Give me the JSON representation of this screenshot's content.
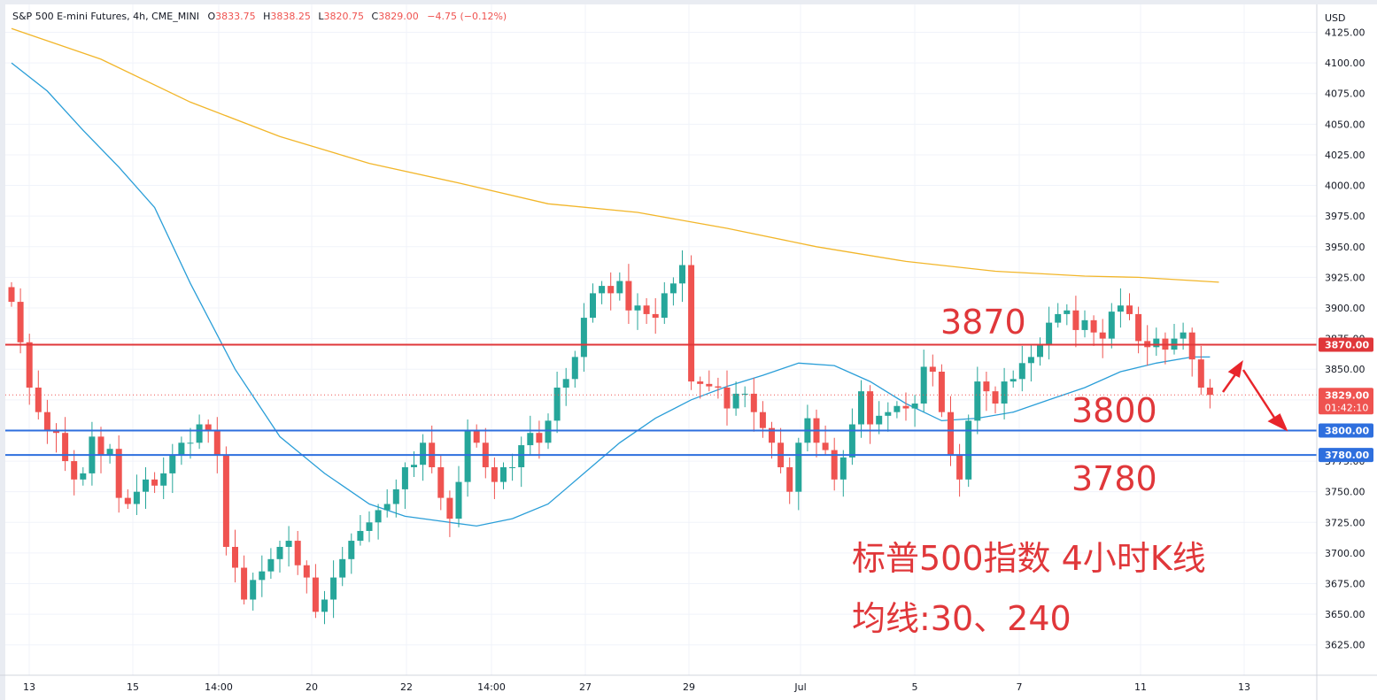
{
  "header": {
    "symbol": "S&P 500 E-mini Futures, 4h, CME_MINI",
    "open_label": "O",
    "open": "3833.75",
    "high_label": "H",
    "high": "3838.25",
    "low_label": "L",
    "low": "3820.75",
    "close_label": "C",
    "close": "3829.00",
    "change": "−4.75 (−0.12%)"
  },
  "colors": {
    "up": "#26a69a",
    "down": "#ef5350",
    "ma30": "#2a9ed8",
    "ma240": "#f2b62a",
    "red_line": "#e0373a",
    "blue_line": "#2e6fde",
    "annotation": "#e0373a",
    "axis_text": "#131722"
  },
  "axis": {
    "currency": "USD",
    "y_ticks": [
      "4125.00",
      "4100.00",
      "4075.00",
      "4050.00",
      "4025.00",
      "4000.00",
      "3975.00",
      "3950.00",
      "3925.00",
      "3900.00",
      "3875.00",
      "3850.00",
      "3825.00",
      "3800.00",
      "3775.00",
      "3750.00",
      "3725.00",
      "3700.00",
      "3675.00",
      "3650.00",
      "3625.00"
    ],
    "x_ticks": [
      "13",
      "15",
      "14:00",
      "20",
      "22",
      "14:00",
      "27",
      "29",
      "Jul",
      "5",
      "7",
      "11",
      "13"
    ]
  },
  "price_tags": {
    "level_3870": "3870.00",
    "current": "3829.00",
    "countdown": "01:42:10",
    "level_3800": "3800.00",
    "level_3780": "3780.00"
  },
  "annotations": {
    "label_3870": "3870",
    "label_3800": "3800",
    "label_3780": "3780",
    "title_line1": "标普500指数 4小时K线",
    "title_line2": "均线:30、240"
  },
  "chart_data": {
    "type": "candlestick",
    "title": "S&P 500 E-mini Futures, 4h, CME_MINI",
    "ylabel": "USD",
    "ylim": [
      3610,
      4130
    ],
    "x_tick_labels": [
      "13",
      "15",
      "14:00",
      "20",
      "22",
      "14:00",
      "27",
      "29",
      "Jul",
      "5",
      "7",
      "11",
      "13"
    ],
    "horizontal_levels": [
      {
        "value": 3870,
        "color": "red"
      },
      {
        "value": 3800,
        "color": "blue"
      },
      {
        "value": 3780,
        "color": "blue"
      }
    ],
    "last_price": 3829.0,
    "close": [
      3905,
      3872,
      3835,
      3815,
      3800,
      3798,
      3775,
      3760,
      3765,
      3795,
      3780,
      3785,
      3745,
      3740,
      3750,
      3760,
      3755,
      3765,
      3780,
      3790,
      3790,
      3805,
      3800,
      3780,
      3705,
      3688,
      3662,
      3678,
      3685,
      3695,
      3705,
      3710,
      3690,
      3680,
      3652,
      3662,
      3680,
      3695,
      3710,
      3718,
      3725,
      3735,
      3740,
      3752,
      3770,
      3772,
      3790,
      3770,
      3745,
      3728,
      3758,
      3800,
      3790,
      3770,
      3758,
      3770,
      3770,
      3788,
      3798,
      3790,
      3808,
      3835,
      3842,
      3860,
      3892,
      3912,
      3918,
      3912,
      3922,
      3898,
      3902,
      3895,
      3892,
      3912,
      3920,
      3935,
      3840,
      3838,
      3836,
      3835,
      3818,
      3830,
      3830,
      3815,
      3802,
      3790,
      3770,
      3750,
      3790,
      3810,
      3790,
      3784,
      3760,
      3778,
      3805,
      3832,
      3805,
      3812,
      3815,
      3820,
      3818,
      3822,
      3852,
      3848,
      3815,
      3780,
      3760,
      3808,
      3840,
      3832,
      3822,
      3840,
      3842,
      3855,
      3860,
      3870,
      3888,
      3895,
      3898,
      3882,
      3890,
      3880,
      3875,
      3897,
      3902,
      3895,
      3873,
      3868,
      3875,
      3866,
      3875,
      3880,
      3858,
      3835,
      3829
    ],
    "ma30": {
      "name": "MA 30",
      "x_index": [
        0,
        4,
        8,
        12,
        16,
        20,
        25,
        30,
        35,
        40,
        44,
        48,
        52,
        56,
        60,
        64,
        68,
        72,
        76,
        80,
        84,
        88,
        92,
        96,
        100,
        104,
        108,
        112,
        116,
        120,
        124,
        128,
        132,
        134
      ],
      "values": [
        4100,
        4077,
        4045,
        4015,
        3982,
        3920,
        3850,
        3795,
        3765,
        3740,
        3730,
        3726,
        3722,
        3728,
        3740,
        3765,
        3790,
        3810,
        3825,
        3836,
        3845,
        3855,
        3853,
        3840,
        3822,
        3808,
        3810,
        3815,
        3825,
        3835,
        3848,
        3855,
        3860,
        3860
      ]
    },
    "ma240": {
      "name": "MA 240",
      "x_index": [
        0,
        10,
        20,
        30,
        40,
        50,
        60,
        70,
        80,
        90,
        100,
        110,
        120,
        126,
        135
      ],
      "values": [
        4128,
        4103,
        4068,
        4040,
        4018,
        4002,
        3985,
        3978,
        3965,
        3950,
        3938,
        3930,
        3926,
        3925,
        3921
      ]
    }
  }
}
